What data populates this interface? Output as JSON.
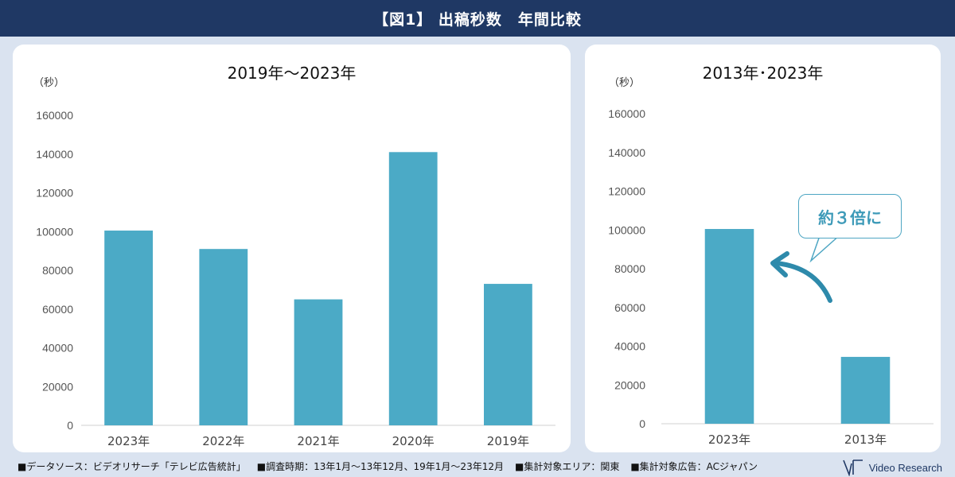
{
  "header": {
    "title": "【図1】 出稿秒数　年間比較"
  },
  "colors": {
    "bar": "#4baac6",
    "header_bg": "#1f3864",
    "accent": "#3d9ab8",
    "page_bg": "#dae3f0"
  },
  "chart_data": [
    {
      "type": "bar",
      "title": "2019年～2023年",
      "ylabel": "（秒）",
      "categories": [
        "2023年",
        "2022年",
        "2021年",
        "2020年",
        "2019年"
      ],
      "values": [
        100500,
        91000,
        65000,
        141000,
        73000
      ],
      "ylim": [
        0,
        160000
      ],
      "yticks": [
        0,
        20000,
        40000,
        60000,
        80000,
        100000,
        120000,
        140000,
        160000
      ],
      "grid": false
    },
    {
      "type": "bar",
      "title": "2013年･2023年",
      "ylabel": "（秒）",
      "categories": [
        "2023年",
        "2013年"
      ],
      "values": [
        100500,
        34500
      ],
      "ylim": [
        0,
        160000
      ],
      "yticks": [
        0,
        20000,
        40000,
        60000,
        80000,
        100000,
        120000,
        140000,
        160000
      ],
      "grid": false,
      "annotation": "約３倍に"
    }
  ],
  "footer": {
    "notes": [
      "■データソース：ビデオリサーチ「テレビ広告統計」",
      "■調査時期：13年1月～13年12月、19年1月～23年12月",
      "■集計対象エリア：関東",
      "■集計対象広告：ACジャパン"
    ],
    "brand": "Video Research",
    "brand_icon": "video-research-logo-icon"
  }
}
